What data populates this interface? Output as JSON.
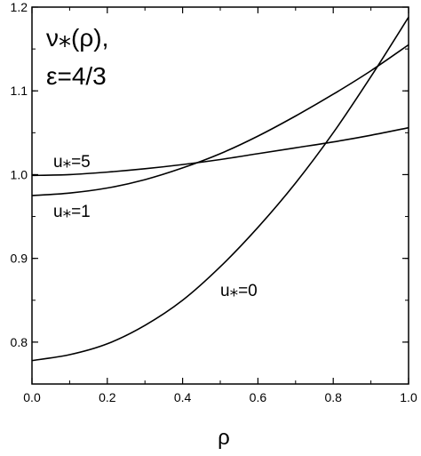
{
  "chart_data": {
    "type": "line",
    "title_line1": "ν⁎(ρ),",
    "title_line2": "ε=4/3",
    "xlabel": "ρ",
    "ylabel": "",
    "xlim": [
      0.0,
      1.0
    ],
    "ylim": [
      0.75,
      1.2
    ],
    "x_ticks": [
      "0.0",
      "0.2",
      "0.4",
      "0.6",
      "0.8",
      "1.0"
    ],
    "y_ticks": [
      "0.8",
      "0.9",
      "1.0",
      "1.1",
      "1.2"
    ],
    "grid": false,
    "x": [
      0.0,
      0.1,
      0.2,
      0.3,
      0.4,
      0.5,
      0.6,
      0.7,
      0.8,
      0.9,
      1.0
    ],
    "series": [
      {
        "name": "u⁎=5",
        "values": [
          0.999,
          1.0,
          1.003,
          1.007,
          1.012,
          1.018,
          1.025,
          1.032,
          1.039,
          1.047,
          1.056
        ]
      },
      {
        "name": "u⁎=1",
        "values": [
          0.975,
          0.978,
          0.984,
          0.994,
          1.008,
          1.025,
          1.046,
          1.07,
          1.096,
          1.124,
          1.155
        ]
      },
      {
        "name": "u⁎=0",
        "values": [
          0.778,
          0.785,
          0.798,
          0.82,
          0.85,
          0.89,
          0.937,
          0.99,
          1.05,
          1.117,
          1.188
        ]
      }
    ],
    "annotations": [
      "u⁎=5",
      "u⁎=1",
      "u⁎=0"
    ]
  }
}
